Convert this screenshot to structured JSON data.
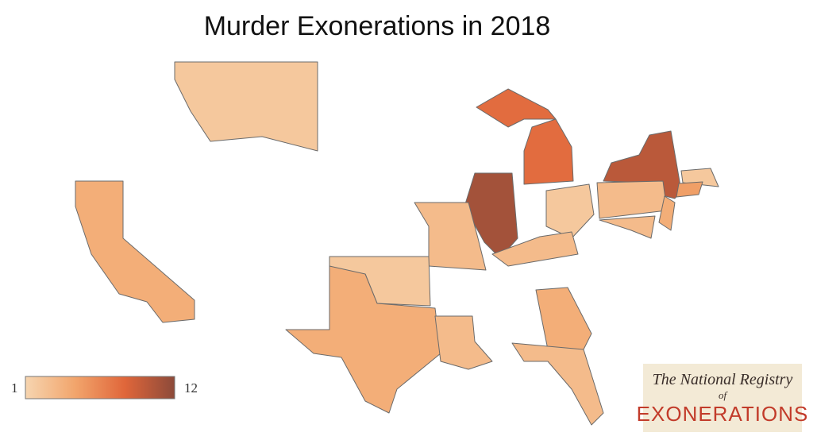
{
  "chart_data": {
    "type": "choropleth",
    "title": "Murder Exonerations in 2018",
    "values": [
      2,
      4,
      8,
      11,
      10,
      2,
      5,
      2,
      3,
      4,
      3,
      3,
      3,
      2,
      4,
      3,
      4,
      3
    ],
    "clim": [
      1,
      12
    ],
    "cticks": [
      1,
      12
    ],
    "colors": [
      "#f6d5b0",
      "#f2a56c",
      "#e0663a",
      "#8c4a3a"
    ]
  },
  "logo": {
    "line1": "The National Registry",
    "line2": "of",
    "line3": "EXONERATIONS"
  }
}
